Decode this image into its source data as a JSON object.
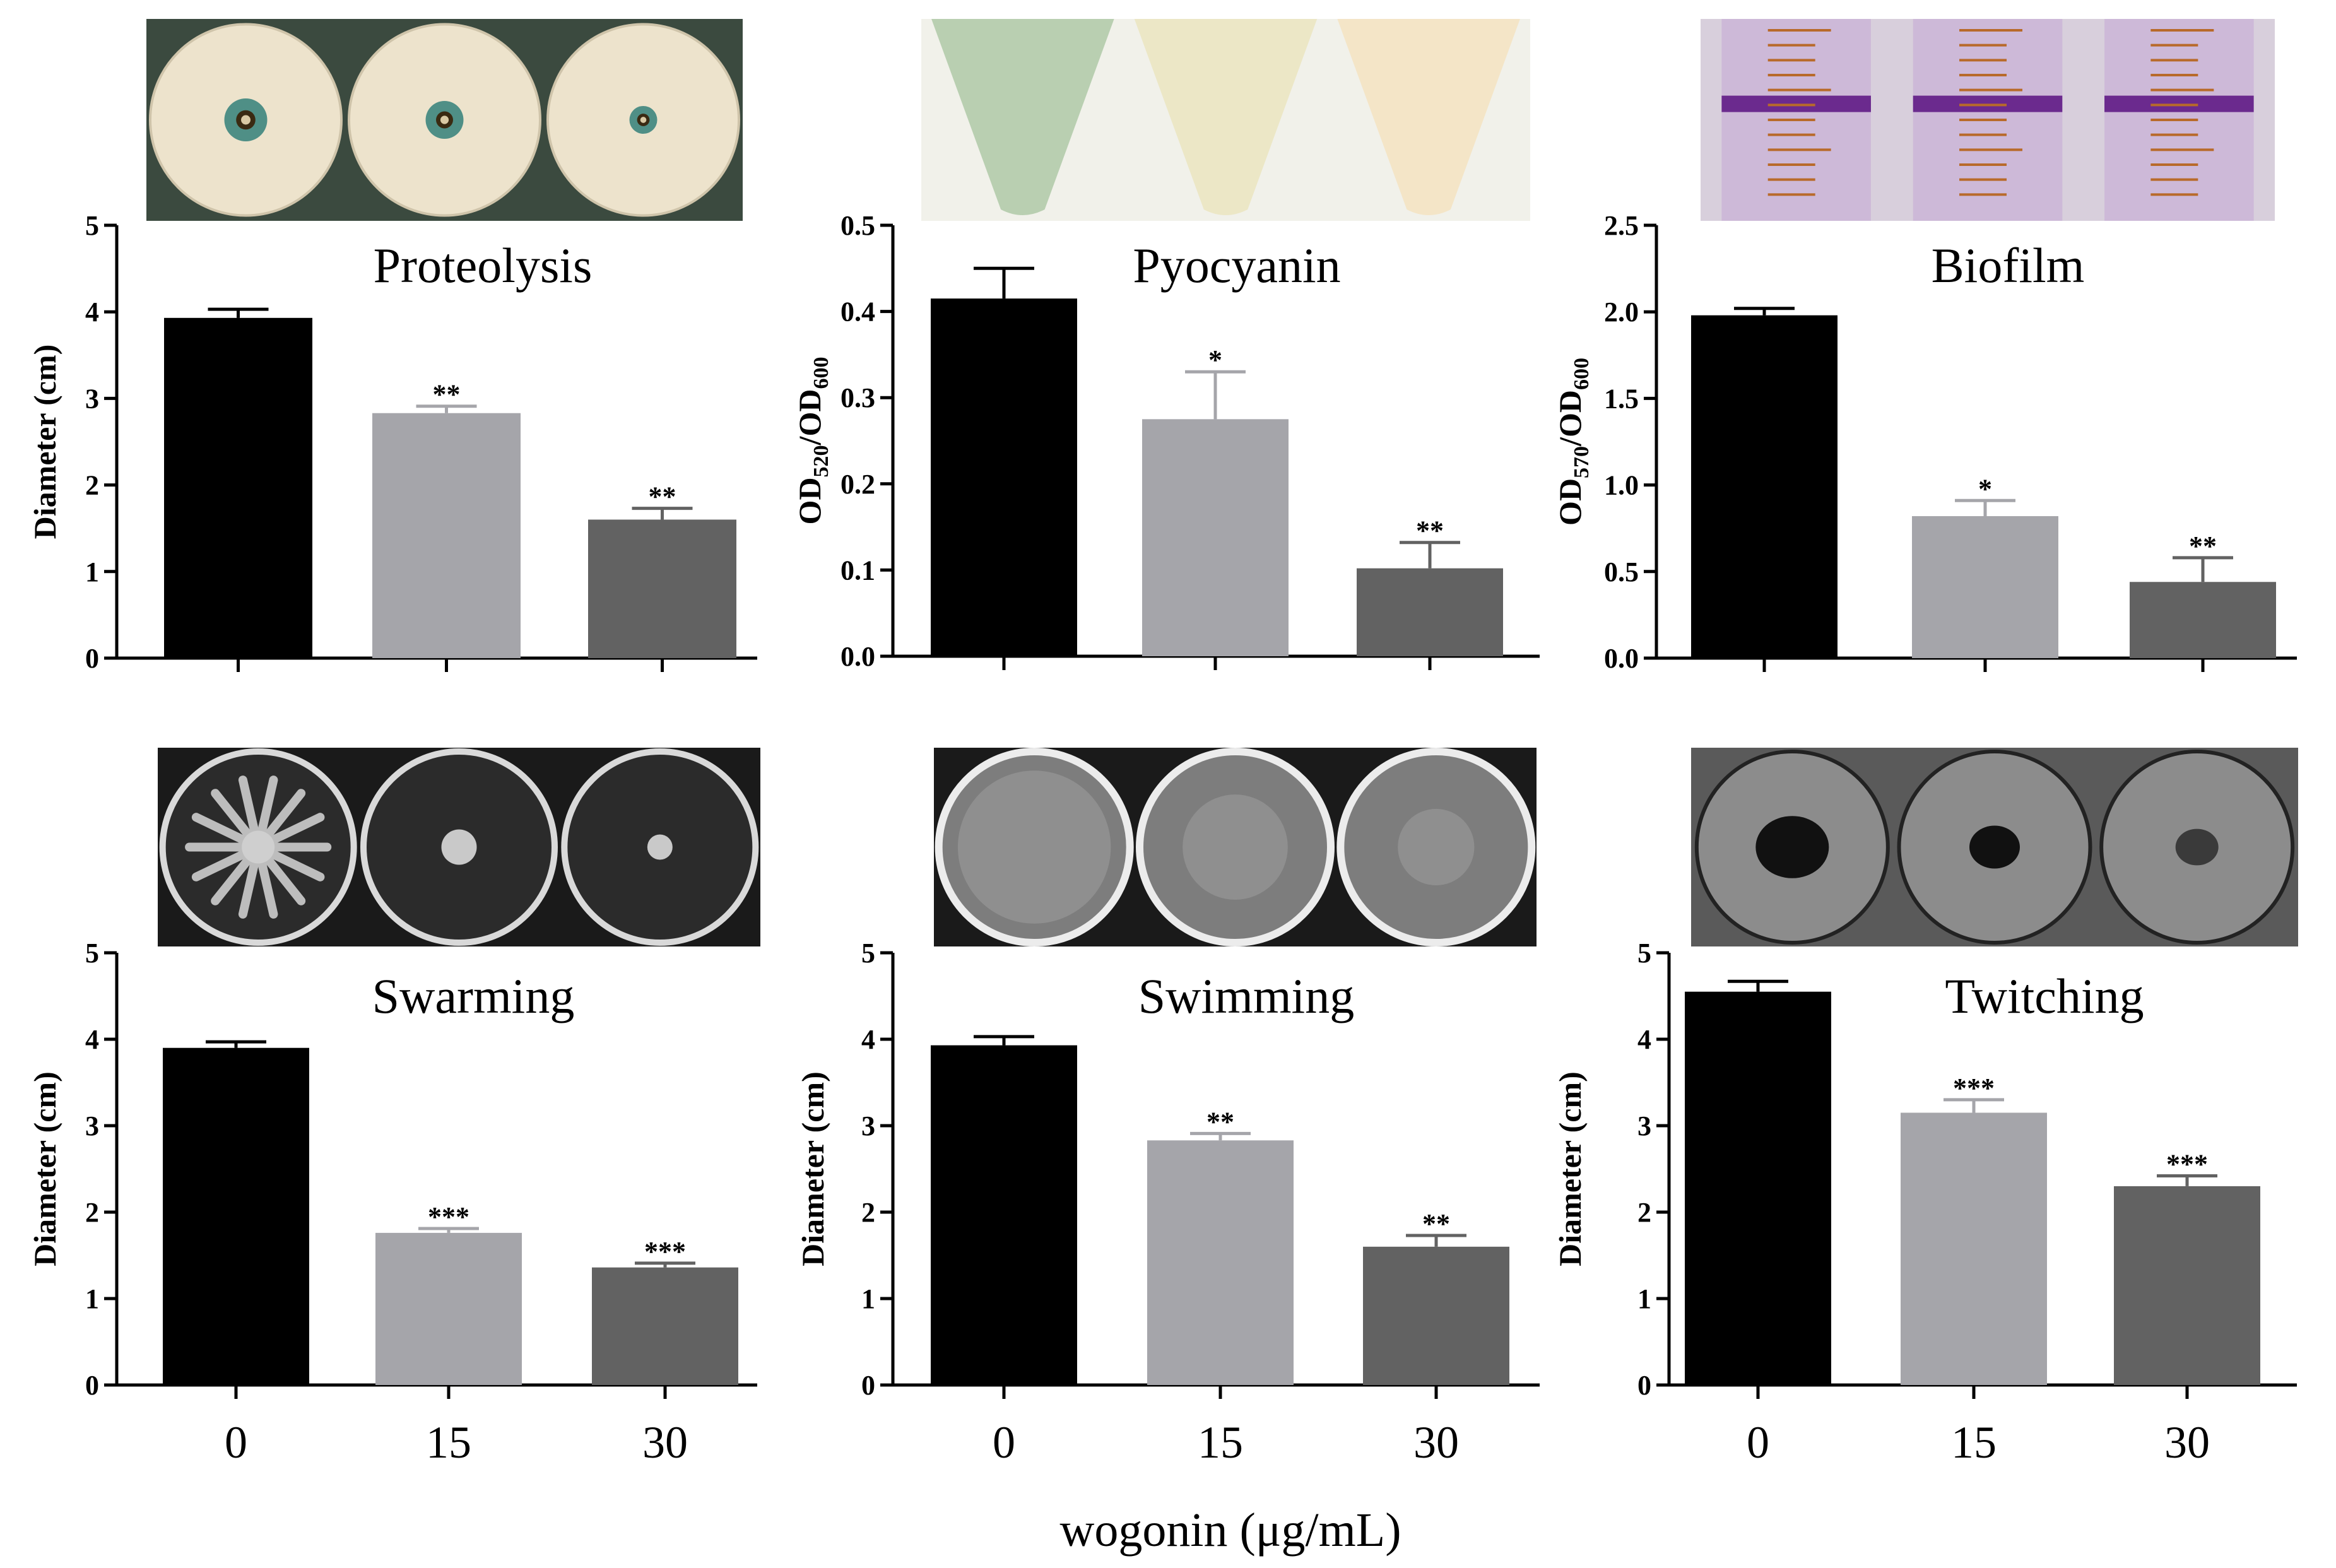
{
  "figure": {
    "shared_xlabel": "wogonin (μg/mL)",
    "photos": [
      {
        "name": "proteolysis-plates-photo",
        "kind": "plates-halo",
        "bg": "#3b4a3f"
      },
      {
        "name": "pyocyanin-tubes-photo",
        "kind": "tubes",
        "bg": "#f1f1ea"
      },
      {
        "name": "biofilm-tubes-photo",
        "kind": "biofilm",
        "bg": "#d8cfdc"
      },
      {
        "name": "swarming-plates-photo",
        "kind": "plates-swarm",
        "bg": "#1a1a1a"
      },
      {
        "name": "swimming-plates-photo",
        "kind": "plates-swim",
        "bg": "#1a1a1a"
      },
      {
        "name": "twitching-plates-photo",
        "kind": "plates-twitch",
        "bg": "#5a5a5a"
      }
    ]
  },
  "chart_data": [
    {
      "type": "bar",
      "title": "Proteolysis",
      "ylabel": "Diameter (cm)",
      "categories": [
        "0",
        "15",
        "30"
      ],
      "show_category_labels": false,
      "values": [
        3.93,
        2.83,
        1.6
      ],
      "errors": [
        0.1,
        0.08,
        0.13
      ],
      "significance": [
        "",
        "**",
        "**"
      ],
      "ylim": [
        0,
        5
      ],
      "yticks": [
        "0",
        "1",
        "2",
        "3",
        "4",
        "5"
      ],
      "bar_colors": [
        "#000000",
        "#a5a5aa",
        "#626262"
      ]
    },
    {
      "type": "bar",
      "title": "Pyocyanin",
      "ylabel_parts": [
        "OD",
        "520",
        "/OD",
        "600"
      ],
      "categories": [
        "0",
        "15",
        "30"
      ],
      "show_category_labels": false,
      "values": [
        0.415,
        0.275,
        0.102
      ],
      "errors": [
        0.035,
        0.055,
        0.03
      ],
      "significance": [
        "",
        "*",
        "**"
      ],
      "ylim": [
        0,
        0.5
      ],
      "yticks": [
        "0.0",
        "0.1",
        "0.2",
        "0.3",
        "0.4",
        "0.5"
      ],
      "bar_colors": [
        "#000000",
        "#a5a5aa",
        "#626262"
      ]
    },
    {
      "type": "bar",
      "title": "Biofilm",
      "ylabel_parts": [
        "OD",
        "570",
        "/OD",
        "600"
      ],
      "categories": [
        "0",
        "15",
        "30"
      ],
      "show_category_labels": false,
      "values": [
        1.98,
        0.82,
        0.44
      ],
      "errors": [
        0.04,
        0.09,
        0.14
      ],
      "significance": [
        "",
        "*",
        "**"
      ],
      "ylim": [
        0,
        2.5
      ],
      "yticks": [
        "0.0",
        "0.5",
        "1.0",
        "1.5",
        "2.0",
        "2.5"
      ],
      "bar_colors": [
        "#000000",
        "#a5a5aa",
        "#626262"
      ]
    },
    {
      "type": "bar",
      "title": "Swarming",
      "ylabel": "Diameter (cm)",
      "categories": [
        "0",
        "15",
        "30"
      ],
      "show_category_labels": true,
      "values": [
        3.9,
        1.76,
        1.36
      ],
      "errors": [
        0.07,
        0.05,
        0.05
      ],
      "significance": [
        "",
        "***",
        "***"
      ],
      "ylim": [
        0,
        5
      ],
      "yticks": [
        "0",
        "1",
        "2",
        "3",
        "4",
        "5"
      ],
      "bar_colors": [
        "#000000",
        "#a5a5aa",
        "#626262"
      ]
    },
    {
      "type": "bar",
      "title": "Swimming",
      "ylabel": "Diameter (cm)",
      "categories": [
        "0",
        "15",
        "30"
      ],
      "show_category_labels": true,
      "values": [
        3.93,
        2.83,
        1.6
      ],
      "errors": [
        0.1,
        0.08,
        0.13
      ],
      "significance": [
        "",
        "**",
        "**"
      ],
      "ylim": [
        0,
        5
      ],
      "yticks": [
        "0",
        "1",
        "2",
        "3",
        "4",
        "5"
      ],
      "bar_colors": [
        "#000000",
        "#a5a5aa",
        "#626262"
      ]
    },
    {
      "type": "bar",
      "title": "Twitching",
      "ylabel": "Diameter (cm)",
      "categories": [
        "0",
        "15",
        "30"
      ],
      "show_category_labels": true,
      "values": [
        4.55,
        3.15,
        2.3
      ],
      "errors": [
        0.12,
        0.15,
        0.12
      ],
      "significance": [
        "",
        "***",
        "***"
      ],
      "ylim": [
        0,
        5
      ],
      "yticks": [
        "0",
        "1",
        "2",
        "3",
        "4",
        "5"
      ],
      "bar_colors": [
        "#000000",
        "#a5a5aa",
        "#626262"
      ]
    }
  ]
}
